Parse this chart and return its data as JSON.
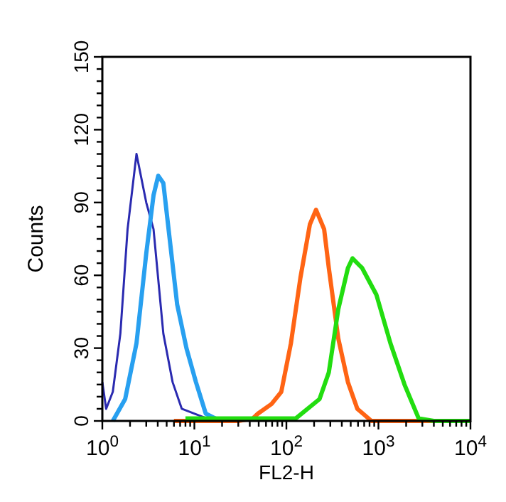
{
  "chart_data": {
    "type": "line",
    "xlabel": "FL2-H",
    "ylabel": "Counts",
    "log": "x",
    "xlim": [
      1,
      10000
    ],
    "ylim": [
      0,
      150
    ],
    "grid": false,
    "xticks": [
      {
        "value": 1,
        "label": "10$^{0}$"
      },
      {
        "value": 2,
        "label": null
      },
      {
        "value": 3,
        "label": null
      },
      {
        "value": 4,
        "label": null
      },
      {
        "value": 5,
        "label": null
      },
      {
        "value": 6,
        "label": null
      },
      {
        "value": 7,
        "label": null
      },
      {
        "value": 8,
        "label": null
      },
      {
        "value": 9,
        "label": null
      },
      {
        "value": 10,
        "label": "10$^{1}$"
      },
      {
        "value": 20,
        "label": null
      },
      {
        "value": 30,
        "label": null
      },
      {
        "value": 40,
        "label": null
      },
      {
        "value": 50,
        "label": null
      },
      {
        "value": 60,
        "label": null
      },
      {
        "value": 70,
        "label": null
      },
      {
        "value": 80,
        "label": null
      },
      {
        "value": 90,
        "label": null
      },
      {
        "value": 100,
        "label": "10$^{2}$"
      },
      {
        "value": 200,
        "label": null
      },
      {
        "value": 300,
        "label": null
      },
      {
        "value": 400,
        "label": null
      },
      {
        "value": 500,
        "label": null
      },
      {
        "value": 600,
        "label": null
      },
      {
        "value": 700,
        "label": null
      },
      {
        "value": 800,
        "label": null
      },
      {
        "value": 900,
        "label": null
      },
      {
        "value": 1000,
        "label": "10$^{3}$"
      },
      {
        "value": 2000,
        "label": null
      },
      {
        "value": 3000,
        "label": null
      },
      {
        "value": 4000,
        "label": null
      },
      {
        "value": 5000,
        "label": null
      },
      {
        "value": 6000,
        "label": null
      },
      {
        "value": 7000,
        "label": null
      },
      {
        "value": 8000,
        "label": null
      },
      {
        "value": 9000,
        "label": null
      },
      {
        "value": 10000,
        "label": "10$^{4}$"
      }
    ],
    "yticks": [
      0,
      {
        "value": 5,
        "label": null
      },
      {
        "value": 10,
        "label": null
      },
      {
        "value": 15,
        "label": null
      },
      {
        "value": 20,
        "label": null
      },
      {
        "value": 25,
        "label": null
      },
      30,
      {
        "value": 35,
        "label": null
      },
      {
        "value": 40,
        "label": null
      },
      {
        "value": 45,
        "label": null
      },
      {
        "value": 50,
        "label": null
      },
      {
        "value": 55,
        "label": null
      },
      60,
      {
        "value": 65,
        "label": null
      },
      {
        "value": 70,
        "label": null
      },
      {
        "value": 75,
        "label": null
      },
      {
        "value": 80,
        "label": null
      },
      {
        "value": 85,
        "label": null
      },
      90,
      {
        "value": 95,
        "label": null
      },
      {
        "value": 100,
        "label": null
      },
      {
        "value": 105,
        "label": null
      },
      {
        "value": 110,
        "label": null
      },
      {
        "value": 115,
        "label": null
      },
      120,
      {
        "value": 125,
        "label": null
      },
      {
        "value": 130,
        "label": null
      },
      {
        "value": 135,
        "label": null
      },
      {
        "value": 140,
        "label": null
      },
      {
        "value": 145,
        "label": null
      },
      150
    ],
    "series": [
      {
        "color": "#2a2ab0",
        "x": [
          1,
          1.1,
          1.3,
          1.57,
          1.88,
          2.35,
          3.0,
          3.6,
          4.6,
          5.8,
          7.3,
          11.7,
          16
        ],
        "values": [
          16,
          5,
          12,
          36,
          79,
          110,
          90,
          79,
          36,
          16,
          5,
          2,
          0
        ]
      },
      {
        "color": "#28a0f0",
        "x": [
          1.3,
          1.77,
          2.35,
          3.0,
          3.6,
          4.05,
          4.6,
          5.1,
          6.5,
          8.2,
          10.4,
          13.3,
          17,
          22
        ],
        "values": [
          0,
          9,
          32,
          69,
          93,
          101,
          98,
          83,
          48,
          30,
          16,
          3,
          1,
          0
        ]
      },
      {
        "color": "#ff6414",
        "x": [
          6,
          30,
          43,
          49,
          69,
          88,
          112,
          142,
          180,
          210,
          257,
          289,
          366,
          466,
          590,
          838,
          10000
        ],
        "values": [
          0,
          0,
          1,
          3,
          7,
          12,
          32,
          59,
          81,
          87,
          79,
          63,
          34,
          16,
          5,
          0,
          0
        ]
      },
      {
        "color": "#22dd10",
        "x": [
          8,
          60,
          126,
          229,
          289,
          366,
          466,
          523,
          665,
          950,
          1350,
          1920,
          2740,
          4000,
          10000
        ],
        "values": [
          1,
          1,
          1,
          9,
          20,
          46,
          63,
          67,
          63,
          52,
          32,
          15,
          1,
          0,
          0
        ]
      }
    ]
  }
}
